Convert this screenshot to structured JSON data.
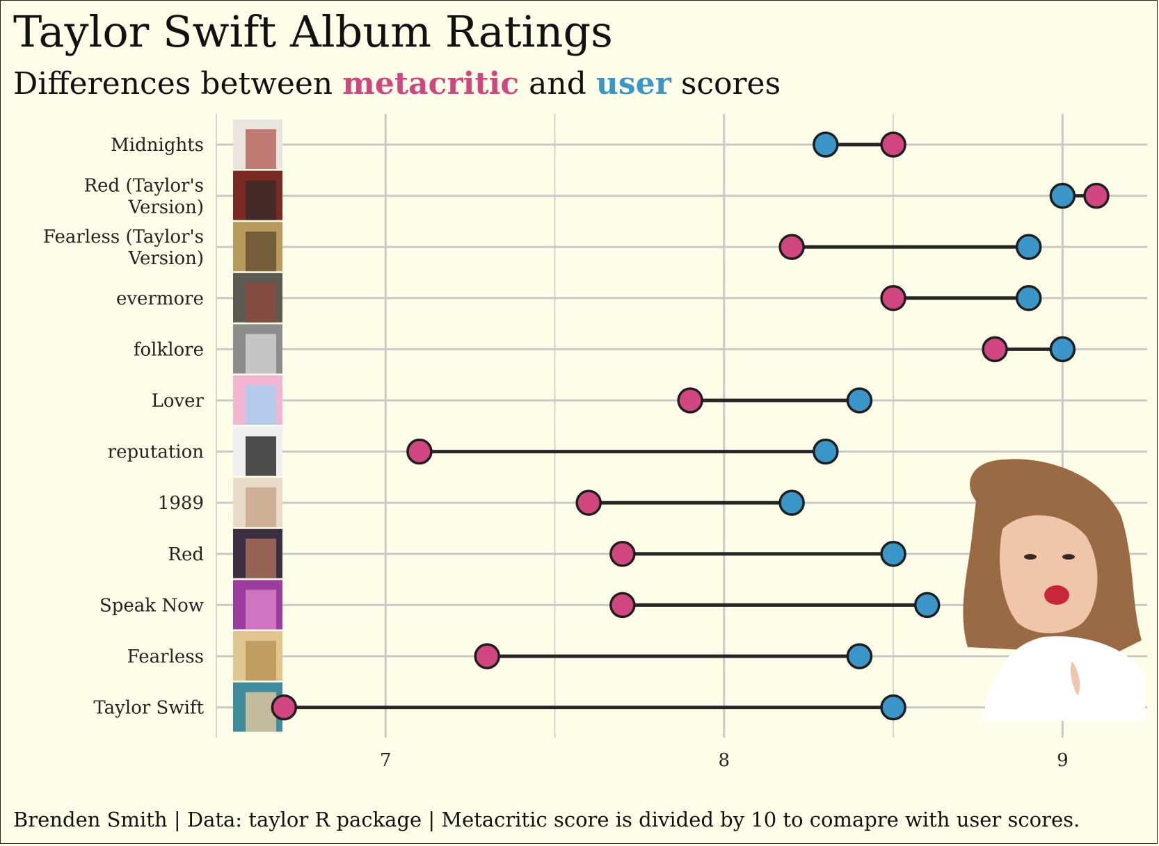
{
  "chart_data": {
    "type": "dumbbell",
    "title": "Taylor Swift Album Ratings",
    "subtitle": {
      "prefix": "Differences between ",
      "metacritic_word": "metacritic",
      "middle": " and ",
      "user_word": "user",
      "suffix": " scores"
    },
    "caption": "Brenden Smith | Data: taylor R package | Metacritic score is divided by 10 to comapre with user scores.",
    "xlim": [
      6.5,
      9.25
    ],
    "xticks": [
      7,
      8,
      9
    ],
    "categories": [
      {
        "name": [
          "Midnights"
        ],
        "metacritic": 8.5,
        "user": 8.3
      },
      {
        "name": [
          "Red (Taylor's",
          "Version)"
        ],
        "metacritic": 9.1,
        "user": 9.0
      },
      {
        "name": [
          "Fearless (Taylor's",
          "Version)"
        ],
        "metacritic": 8.2,
        "user": 8.9
      },
      {
        "name": [
          "evermore"
        ],
        "metacritic": 8.5,
        "user": 8.9
      },
      {
        "name": [
          "folklore"
        ],
        "metacritic": 8.8,
        "user": 9.0
      },
      {
        "name": [
          "Lover"
        ],
        "metacritic": 7.9,
        "user": 8.4
      },
      {
        "name": [
          "reputation"
        ],
        "metacritic": 7.1,
        "user": 8.3
      },
      {
        "name": [
          "1989"
        ],
        "metacritic": 7.6,
        "user": 8.2
      },
      {
        "name": [
          "Red"
        ],
        "metacritic": 7.7,
        "user": 8.5
      },
      {
        "name": [
          "Speak Now"
        ],
        "metacritic": 7.7,
        "user": 8.6
      },
      {
        "name": [
          "Fearless"
        ],
        "metacritic": 7.3,
        "user": 8.4
      },
      {
        "name": [
          "Taylor Swift"
        ],
        "metacritic": 6.7,
        "user": 8.5
      }
    ],
    "series": [
      {
        "name": "metacritic",
        "color": "#d1467f"
      },
      {
        "name": "user",
        "color": "#3a96c8"
      }
    ],
    "grid": true
  },
  "thumb_colors": [
    [
      "#e9e4dc",
      "#b7685e"
    ],
    [
      "#7a2a22",
      "#3c2a28"
    ],
    [
      "#b79a5c",
      "#6b5234"
    ],
    [
      "#5d5a52",
      "#8a4a3e"
    ],
    [
      "#8d8d8d",
      "#cfcfcf"
    ],
    [
      "#f2b6d3",
      "#a9cfee"
    ],
    [
      "#efefef",
      "#2f2f2f"
    ],
    [
      "#e8dcc8",
      "#c9a88e"
    ],
    [
      "#3a3042",
      "#a86c58"
    ],
    [
      "#9b3c9e",
      "#d87ec7"
    ],
    [
      "#e0c58e",
      "#b9955c"
    ],
    [
      "#3e8c9c",
      "#d9c49c"
    ]
  ]
}
